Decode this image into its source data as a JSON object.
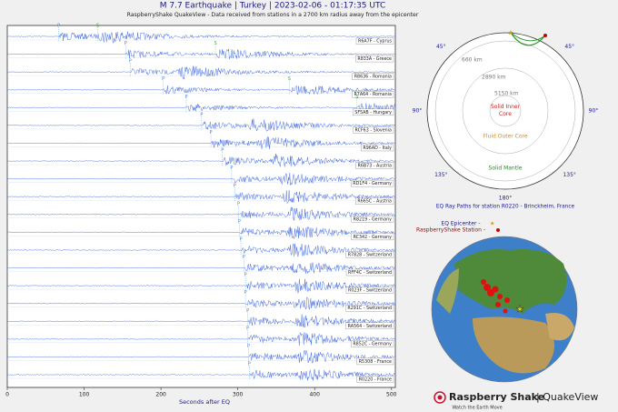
{
  "chart_data": {
    "type": "seismogram",
    "title": "M 7.7 Earthquake | Turkey | 2023-02-06 - 01:17:35 UTC",
    "subtitle": "RaspberryShake QuakeView - Data received from stations in a 2700 km radius away from the epicenter",
    "xlabel": "Seconds after EQ",
    "xlim": [
      0,
      505
    ],
    "xticks": [
      0,
      100,
      200,
      300,
      400,
      500
    ],
    "color": "#4a6fe0",
    "stations": [
      {
        "name": "R6A7F - Cyprus",
        "p": 67,
        "s": 118
      },
      {
        "name": "R833A - Greece",
        "p": 154,
        "s": 271
      },
      {
        "name": "R8636 - Romania",
        "p": 160,
        "s": null
      },
      {
        "name": "R7A64 - Romania",
        "p": 203,
        "s": 367
      },
      {
        "name": "SF5AB - Hungary",
        "p": 233,
        "s": 455
      },
      {
        "name": "RCF63 - Slovenia",
        "p": 253,
        "s": null
      },
      {
        "name": "R96AD - Italy",
        "p": 265,
        "s": null
      },
      {
        "name": "R6B73 - Austria",
        "p": 280,
        "s": null
      },
      {
        "name": "RD1F4 - Germany",
        "p": 292,
        "s": null
      },
      {
        "name": "R665C - Austria",
        "p": 296,
        "s": null
      },
      {
        "name": "R8219 - Germany",
        "p": 301,
        "s": null
      },
      {
        "name": "RC342 - Germany",
        "p": 302,
        "s": null
      },
      {
        "name": "R7828 - Switzerland",
        "p": 304,
        "s": null
      },
      {
        "name": "RFF4C - Switzerland",
        "p": 308,
        "s": null
      },
      {
        "name": "R023F - Switzerland",
        "p": 310,
        "s": null
      },
      {
        "name": "R291C - Switzerland",
        "p": 310,
        "s": null
      },
      {
        "name": "RA564 - Switzerland",
        "p": 313,
        "s": null
      },
      {
        "name": "R852C - Germany",
        "p": 313,
        "s": null
      },
      {
        "name": "R5308 - France",
        "p": 314,
        "s": null
      },
      {
        "name": "R0220 - France",
        "p": 315,
        "s": null
      }
    ],
    "p_label": "P",
    "s_label": "S"
  },
  "ray_diagram": {
    "caption": "EQ Ray Paths for station R0220 - Brinckheim, France",
    "angles": [
      "45°",
      "45°",
      "90°",
      "90°",
      "135°",
      "135°",
      "180°"
    ],
    "depths": [
      "660 km",
      "2890 km",
      "5150 km"
    ],
    "layers": [
      "Solid Inner\nCore",
      "Fluid Outer Core",
      "Solid Mantle"
    ]
  },
  "globe": {
    "legend_epicenter": "EQ Epicenter -",
    "legend_station": "RaspberryShake Station -"
  },
  "logo": {
    "brand": "Raspberry Shake",
    "product": "| QuakeView",
    "tagline": "Watch the Earth Move"
  }
}
